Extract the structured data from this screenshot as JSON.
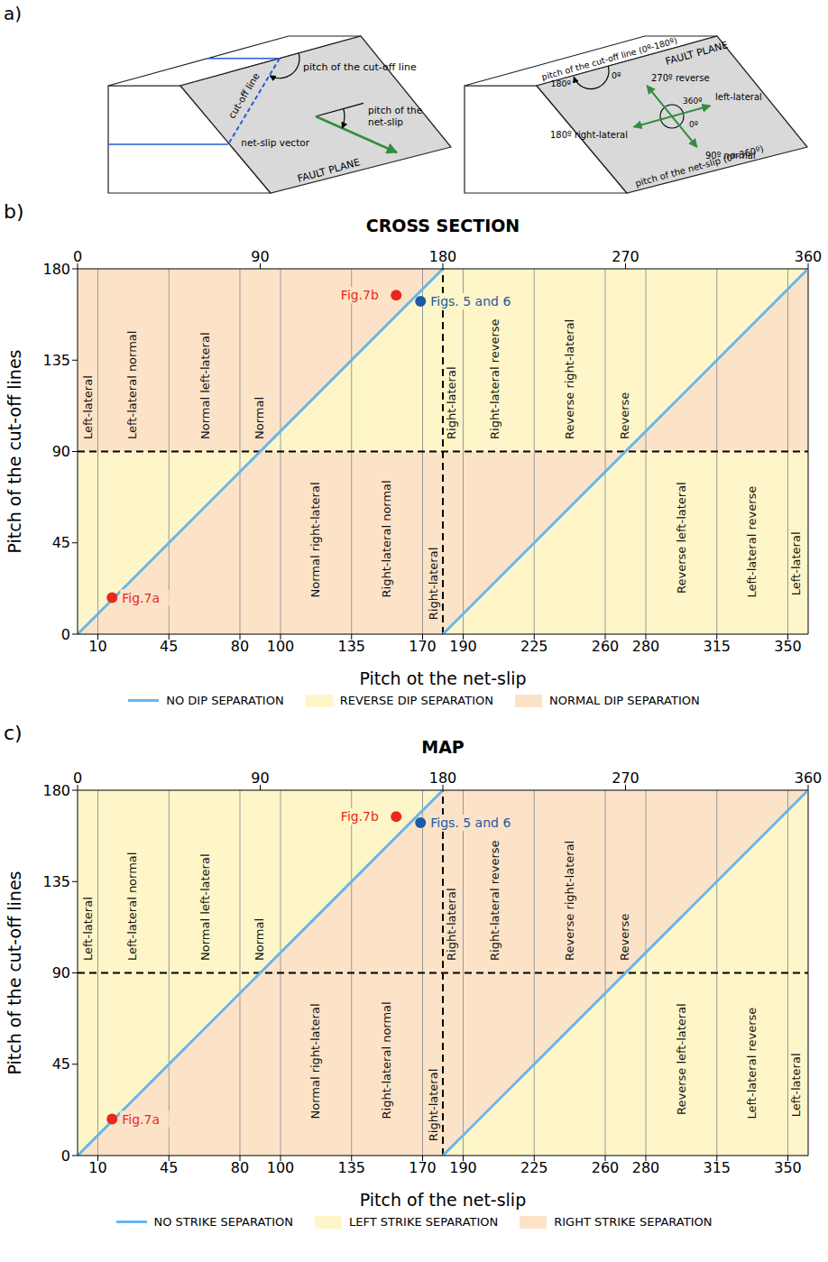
{
  "diagram": {
    "label": "a)",
    "left": {
      "cut_off_pitch": "pitch of the cut-off line",
      "cut_off_line": "cut-off line",
      "net_slip_pitch": "pitch of the net-slip",
      "net_slip_vector": "net-slip vector",
      "plane": "FAULT PLANE"
    },
    "right": {
      "cut_off_pitch": "pitch of the cut-off line (0º-180º)",
      "plane": "FAULT PLANE",
      "cut_off_0": "0º",
      "cut_off_180": "180º",
      "reverse": "270º reverse",
      "left_lateral_360": "360º",
      "left_lateral_0": "0º",
      "left_lateral": "left-lateral",
      "right_lateral": "180º right-lateral",
      "normal": "90º normal",
      "net_slip_pitch": "pitch of the net-slip (0º-360º)"
    }
  },
  "chart_data": [
    {
      "type": "area",
      "label": "b)",
      "title": "CROSS SECTION",
      "x_label": "Pitch ot the net-slip",
      "y_label": "Pitch of the cut-off lines",
      "xlim": [
        0,
        360
      ],
      "ylim": [
        0,
        180
      ],
      "xticks": [
        10,
        45,
        80,
        100,
        135,
        170,
        190,
        225,
        260,
        280,
        315,
        350
      ],
      "x2ticks": [
        0,
        90,
        180,
        270,
        360
      ],
      "yticks": [
        0,
        45,
        90,
        135,
        180
      ],
      "grid": "x",
      "legend": "bottom",
      "reference_lines": {
        "x": [
          180
        ],
        "y": [
          90
        ],
        "line_style": "dashed",
        "color": "#000000"
      },
      "region_x": [
        0,
        90,
        180,
        270,
        360
      ],
      "regions": [
        {
          "name": "REVERSE DIP SEPARATION",
          "color": "#fef6c8",
          "bands": [
            {
              "low": [
                0,
                90,
                null,
                null,
                null
              ],
              "high": [
                90,
                90,
                null,
                null,
                null
              ]
            },
            {
              "low": [
                null,
                null,
                0,
                0,
                0
              ],
              "high": [
                null,
                null,
                0,
                90,
                90
              ]
            },
            {
              "low": [
                null,
                90,
                90,
                90,
                180
              ],
              "high": [
                null,
                90,
                180,
                180,
                180
              ]
            }
          ]
        },
        {
          "name": "NORMAL DIP SEPARATION",
          "color": "#fce3c8",
          "bands": [
            {
              "low": [
                0,
                0,
                0,
                90,
                null
              ],
              "high": [
                0,
                90,
                90,
                90,
                null
              ]
            },
            {
              "low": [
                90,
                90,
                180,
                null,
                null
              ],
              "high": [
                180,
                180,
                180,
                null,
                null
              ]
            },
            {
              "low": [
                null,
                null,
                null,
                90,
                90
              ],
              "high": [
                null,
                null,
                null,
                90,
                180
              ]
            }
          ]
        }
      ],
      "series": [
        {
          "name": "NO DIP SEPARATION",
          "type": "line",
          "color": "#66b6ee",
          "segments": [
            {
              "x": [
                0,
                180
              ],
              "values": [
                0,
                180
              ]
            },
            {
              "x": [
                180,
                360
              ],
              "values": [
                0,
                180
              ]
            }
          ]
        }
      ],
      "points": [
        {
          "label": "Fig.7a",
          "x": 17,
          "y": 18,
          "color": "#e8291c"
        },
        {
          "label": "Fig.7b",
          "x": 157,
          "y": 167,
          "color": "#e8291c"
        },
        {
          "label": "Figs. 5 and 6",
          "x": 169,
          "y": 164,
          "color": "#1a5aa6"
        }
      ],
      "annotations": [
        {
          "text": "Left-lateral",
          "x": 5,
          "y": 96
        },
        {
          "text": "Left-lateral normal",
          "x": 27,
          "y": 96
        },
        {
          "text": "Normal left-lateral",
          "x": 63,
          "y": 96
        },
        {
          "text": "Normal",
          "x": 89.5,
          "y": 96
        },
        {
          "text": "Right-lateral",
          "x": 184,
          "y": 96
        },
        {
          "text": "Right-lateral reverse",
          "x": 205.5,
          "y": 96
        },
        {
          "text": "Reverse right-lateral",
          "x": 242.5,
          "y": 96
        },
        {
          "text": "Reverse",
          "x": 269.5,
          "y": 96
        },
        {
          "text": "Normal right-lateral",
          "x": 117,
          "y": 18
        },
        {
          "text": "Right-lateral normal",
          "x": 152,
          "y": 18
        },
        {
          "text": "Right-lateral",
          "x": 175.5,
          "y": 7
        },
        {
          "text": "Reverse left-lateral",
          "x": 297.5,
          "y": 20
        },
        {
          "text": "Left-lateral reverse",
          "x": 332,
          "y": 18
        },
        {
          "text": "Left-lateral",
          "x": 354,
          "y": 19
        }
      ]
    },
    {
      "type": "area",
      "label": "c)",
      "title": "MAP",
      "x_label": "Pitch of the net-slip",
      "y_label": "Pitch of the cut-off lines",
      "xlim": [
        0,
        360
      ],
      "ylim": [
        0,
        180
      ],
      "xticks": [
        10,
        45,
        80,
        100,
        135,
        170,
        190,
        225,
        260,
        280,
        315,
        350
      ],
      "x2ticks": [
        0,
        90,
        180,
        270,
        360
      ],
      "yticks": [
        0,
        45,
        90,
        135,
        180
      ],
      "grid": "x",
      "legend": "bottom",
      "reference_lines": {
        "x": [
          180
        ],
        "y": [
          90
        ],
        "line_style": "dashed",
        "color": "#000000"
      },
      "region_x": [
        0,
        180,
        360
      ],
      "regions": [
        {
          "name": "LEFT STRIKE SEPARATION",
          "color": "#fef6c8",
          "bands": [
            {
              "low": [
                0,
                180,
                null
              ],
              "high": [
                180,
                180,
                null
              ]
            },
            {
              "low": [
                null,
                0,
                0
              ],
              "high": [
                null,
                0,
                180
              ]
            }
          ]
        },
        {
          "name": "RIGHT STRIKE SEPARATION",
          "color": "#fce3c8",
          "bands": [
            {
              "low": [
                0,
                0,
                180
              ],
              "high": [
                0,
                180,
                180
              ]
            }
          ]
        }
      ],
      "series": [
        {
          "name": "NO STRIKE SEPARATION",
          "type": "line",
          "color": "#66b6ee",
          "segments": [
            {
              "x": [
                0,
                180
              ],
              "values": [
                0,
                180
              ]
            },
            {
              "x": [
                180,
                360
              ],
              "values": [
                0,
                180
              ]
            }
          ]
        }
      ],
      "points": [
        {
          "label": "Fig.7a",
          "x": 17,
          "y": 18,
          "color": "#e8291c"
        },
        {
          "label": "Fig.7b",
          "x": 157,
          "y": 167,
          "color": "#e8291c"
        },
        {
          "label": "Figs. 5 and 6",
          "x": 169,
          "y": 164,
          "color": "#1a5aa6"
        }
      ],
      "annotations": [
        {
          "text": "Left-lateral",
          "x": 5,
          "y": 96
        },
        {
          "text": "Left-lateral normal",
          "x": 27,
          "y": 96
        },
        {
          "text": "Normal left-lateral",
          "x": 63,
          "y": 96
        },
        {
          "text": "Normal",
          "x": 89.5,
          "y": 96
        },
        {
          "text": "Right-lateral",
          "x": 184,
          "y": 96
        },
        {
          "text": "Right-lateral reverse",
          "x": 205.5,
          "y": 96
        },
        {
          "text": "Reverse right-lateral",
          "x": 242.5,
          "y": 96
        },
        {
          "text": "Reverse",
          "x": 269.5,
          "y": 96
        },
        {
          "text": "Normal right-lateral",
          "x": 117,
          "y": 18
        },
        {
          "text": "Right-lateral normal",
          "x": 152,
          "y": 18
        },
        {
          "text": "Right-lateral",
          "x": 175.5,
          "y": 7
        },
        {
          "text": "Reverse left-lateral",
          "x": 297.5,
          "y": 20
        },
        {
          "text": "Left-lateral reverse",
          "x": 332,
          "y": 18
        },
        {
          "text": "Left-lateral",
          "x": 354,
          "y": 19
        }
      ]
    }
  ]
}
